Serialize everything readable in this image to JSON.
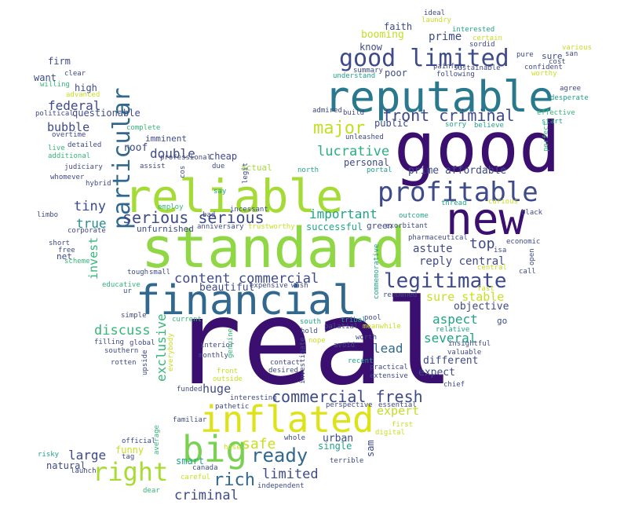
{
  "words": [
    {
      "text": "real",
      "color": "#3b0f6f"
    },
    {
      "text": "good",
      "color": "#3b0f6f"
    },
    {
      "text": "standard",
      "color": "#8fd744"
    },
    {
      "text": "reliable",
      "color": "#a5db36"
    },
    {
      "text": "financial",
      "color": "#31688e"
    },
    {
      "text": "reputable",
      "color": "#2a788e"
    },
    {
      "text": "new",
      "color": "#3b0f6f"
    },
    {
      "text": "inflated",
      "color": "#dde318"
    },
    {
      "text": "big",
      "color": "#7ad151"
    },
    {
      "text": "profitable",
      "color": "#3e4a89"
    },
    {
      "text": "particular",
      "color": "#31688e"
    },
    {
      "text": "good limited",
      "color": "#3e4a89"
    },
    {
      "text": "legitimate",
      "color": "#3e4a89"
    },
    {
      "text": "right",
      "color": "#a8db34"
    },
    {
      "text": "front criminal",
      "color": "#3e4a89"
    },
    {
      "text": "commercial fresh",
      "color": "#3e4a89"
    },
    {
      "text": "serious serious",
      "color": "#3e4a89"
    },
    {
      "text": "content commercial",
      "color": "#3e4a89"
    },
    {
      "text": "ready",
      "color": "#31688e"
    },
    {
      "text": "major",
      "color": "#c2df23"
    },
    {
      "text": "rich",
      "color": "#31688e"
    },
    {
      "text": "lucrative",
      "color": "#29af7f"
    },
    {
      "text": "prime affordable",
      "color": "#3e4a89"
    },
    {
      "text": "sure stable",
      "color": "#c8e020"
    },
    {
      "text": "important",
      "color": "#20a486"
    },
    {
      "text": "federal",
      "color": "#3e4a89"
    },
    {
      "text": "bubble",
      "color": "#3e4a89"
    },
    {
      "text": "double",
      "color": "#3e4a89"
    },
    {
      "text": "tiny",
      "color": "#3e4a89"
    },
    {
      "text": "true",
      "color": "#21918c"
    },
    {
      "text": "huge",
      "color": "#3e4a89"
    },
    {
      "text": "top",
      "color": "#3e4a89"
    },
    {
      "text": "astute",
      "color": "#3e4a89"
    },
    {
      "text": "reply central",
      "color": "#3e4a89"
    },
    {
      "text": "criminal",
      "color": "#3e4a89"
    },
    {
      "text": "limited",
      "color": "#3e4a89"
    },
    {
      "text": "large",
      "color": "#3e4a89"
    },
    {
      "text": "safe",
      "color": "#c8e020"
    },
    {
      "text": "exclusive",
      "color": "#35b779"
    },
    {
      "text": "invest",
      "color": "#35b779"
    },
    {
      "text": "discuss",
      "color": "#35b779"
    },
    {
      "text": "several",
      "color": "#20a486"
    },
    {
      "text": "aspect",
      "color": "#20a486"
    },
    {
      "text": "lead",
      "color": "#31688e"
    },
    {
      "text": "expert",
      "color": "#c2df23"
    },
    {
      "text": "prime",
      "color": "#3e4a89"
    },
    {
      "text": "booming",
      "color": "#c2df23"
    },
    {
      "text": "beautiful",
      "color": "#3e4a89"
    },
    {
      "text": "different",
      "color": "#3e4a89"
    },
    {
      "text": "expect",
      "color": "#3e4a89"
    },
    {
      "text": "objective",
      "color": "#3e4a89"
    },
    {
      "text": "successful",
      "color": "#20a486"
    },
    {
      "text": "personal",
      "color": "#3e4a89"
    },
    {
      "text": "public",
      "color": "#3e4a89"
    },
    {
      "text": "cheap",
      "color": "#3e4a89"
    },
    {
      "text": "roof",
      "color": "#3e4a89"
    },
    {
      "text": "funny",
      "color": "#c8e020"
    },
    {
      "text": "urban",
      "color": "#3e4a89"
    },
    {
      "text": "single",
      "color": "#20a486"
    },
    {
      "text": "natural",
      "color": "#3e4a89"
    },
    {
      "text": "smart",
      "color": "#20a486"
    },
    {
      "text": "sam",
      "color": "#3e4a89"
    },
    {
      "text": "faith",
      "color": "#3e4a89"
    },
    {
      "text": "know",
      "color": "#3e4a89"
    },
    {
      "text": "poor",
      "color": "#3e4a89"
    },
    {
      "text": "firm",
      "color": "#3e4a89"
    },
    {
      "text": "want",
      "color": "#3e4a89"
    },
    {
      "text": "high",
      "color": "#3e4a89"
    },
    {
      "text": "questionable",
      "color": "#3e4a89"
    },
    {
      "text": "imminent",
      "color": "#3e4a89"
    },
    {
      "text": "net",
      "color": "#3e4a89"
    },
    {
      "text": "green",
      "color": "#3e4a89"
    },
    {
      "text": "actual",
      "color": "#a5db36"
    },
    {
      "text": "go",
      "color": "#3e4a89"
    },
    {
      "text": "sure",
      "color": "#3e4a89"
    },
    {
      "text": "unfurnished",
      "color": "#3e4a89"
    },
    {
      "text": "ideal",
      "color": "#3e4a89"
    },
    {
      "text": "laundry",
      "color": "#c8e020"
    },
    {
      "text": "interested",
      "color": "#20a486"
    },
    {
      "text": "sordid",
      "color": "#3e4a89"
    },
    {
      "text": "certain",
      "color": "#c8e020"
    },
    {
      "text": "worthy",
      "color": "#c8e020"
    },
    {
      "text": "pure",
      "color": "#3e4a89"
    },
    {
      "text": "various",
      "color": "#c8e020"
    },
    {
      "text": "san",
      "color": "#3e4a89"
    },
    {
      "text": "cost",
      "color": "#3e4a89"
    },
    {
      "text": "confident",
      "color": "#3e4a89"
    },
    {
      "text": "painful",
      "color": "#3e4a89"
    },
    {
      "text": "sustainable",
      "color": "#3e4a89"
    },
    {
      "text": "following",
      "color": "#3e4a89"
    },
    {
      "text": "summary",
      "color": "#3e4a89"
    },
    {
      "text": "understand",
      "color": "#20a486"
    },
    {
      "text": "agree",
      "color": "#3e4a89"
    },
    {
      "text": "desperate",
      "color": "#20a486"
    },
    {
      "text": "clear",
      "color": "#3e4a89"
    },
    {
      "text": "willing",
      "color": "#35b779"
    },
    {
      "text": "advanced",
      "color": "#c8e020"
    },
    {
      "text": "political",
      "color": "#3e4a89"
    },
    {
      "text": "complete",
      "color": "#35b779"
    },
    {
      "text": "overtime",
      "color": "#3e4a89"
    },
    {
      "text": "live",
      "color": "#35b779"
    },
    {
      "text": "additional",
      "color": "#35b779"
    },
    {
      "text": "detailed",
      "color": "#3e4a89"
    },
    {
      "text": "professional",
      "color": "#3e4a89"
    },
    {
      "text": "judiciary",
      "color": "#3e4a89"
    },
    {
      "text": "assist",
      "color": "#3e4a89"
    },
    {
      "text": "whomever",
      "color": "#3e4a89"
    },
    {
      "text": "hybrid",
      "color": "#3e4a89"
    },
    {
      "text": "cos",
      "color": "#3e4a89"
    },
    {
      "text": "due",
      "color": "#3e4a89"
    },
    {
      "text": "employ",
      "color": "#35b779"
    },
    {
      "text": "say",
      "color": "#20a486"
    },
    {
      "text": "legit",
      "color": "#3e4a89"
    },
    {
      "text": "north",
      "color": "#20a486"
    },
    {
      "text": "incessant",
      "color": "#3e4a89"
    },
    {
      "text": "bad",
      "color": "#3e4a89"
    },
    {
      "text": "anniversary",
      "color": "#3e4a89"
    },
    {
      "text": "trustworthy",
      "color": "#c8e020"
    },
    {
      "text": "limbo",
      "color": "#3e4a89"
    },
    {
      "text": "corporate",
      "color": "#3e4a89"
    },
    {
      "text": "short",
      "color": "#3e4a89"
    },
    {
      "text": "free",
      "color": "#3e4a89"
    },
    {
      "text": "scheme",
      "color": "#35b779"
    },
    {
      "text": "tough",
      "color": "#3e4a89"
    },
    {
      "text": "small",
      "color": "#3e4a89"
    },
    {
      "text": "educative",
      "color": "#35b779"
    },
    {
      "text": "ur",
      "color": "#3e4a89"
    },
    {
      "text": "expensive",
      "color": "#3e4a89"
    },
    {
      "text": "wash",
      "color": "#3e4a89"
    },
    {
      "text": "simple",
      "color": "#3e4a89"
    },
    {
      "text": "current",
      "color": "#35b779"
    },
    {
      "text": "global",
      "color": "#3e4a89"
    },
    {
      "text": "filling",
      "color": "#3e4a89"
    },
    {
      "text": "southern",
      "color": "#3e4a89"
    },
    {
      "text": "rotten",
      "color": "#3e4a89"
    },
    {
      "text": "upside",
      "color": "#3e4a89"
    },
    {
      "text": "everybody",
      "color": "#c8e020"
    },
    {
      "text": "interior",
      "color": "#3e4a89"
    },
    {
      "text": "monthly",
      "color": "#3e4a89"
    },
    {
      "text": "genuine",
      "color": "#35b779"
    },
    {
      "text": "south",
      "color": "#20a486"
    },
    {
      "text": "hold",
      "color": "#3e4a89"
    },
    {
      "text": "nope",
      "color": "#c8e020"
    },
    {
      "text": "avoid",
      "color": "#3e4a89"
    },
    {
      "text": "tribal",
      "color": "#20a486"
    },
    {
      "text": "palatial",
      "color": "#3e4a89"
    },
    {
      "text": "pool",
      "color": "#3e4a89"
    },
    {
      "text": "meanwhile",
      "color": "#c8e020"
    },
    {
      "text": "worth",
      "color": "#3e4a89"
    },
    {
      "text": "recent",
      "color": "#20a486"
    },
    {
      "text": "practical",
      "color": "#3e4a89"
    },
    {
      "text": "extensive",
      "color": "#3e4a89"
    },
    {
      "text": "front",
      "color": "#c8e020"
    },
    {
      "text": "outside",
      "color": "#c8e020"
    },
    {
      "text": "funded",
      "color": "#3e4a89"
    },
    {
      "text": "contact",
      "color": "#3e4a89"
    },
    {
      "text": "desired",
      "color": "#3e4a89"
    },
    {
      "text": "investigate",
      "color": "#3e4a89"
    },
    {
      "text": "interesting",
      "color": "#3e4a89"
    },
    {
      "text": "pathetic",
      "color": "#3e4a89"
    },
    {
      "text": "perspective",
      "color": "#3e4a89"
    },
    {
      "text": "essential",
      "color": "#3e4a89"
    },
    {
      "text": "familiar",
      "color": "#3e4a89"
    },
    {
      "text": "first",
      "color": "#c8e020"
    },
    {
      "text": "digital",
      "color": "#c8e020"
    },
    {
      "text": "official",
      "color": "#3e4a89"
    },
    {
      "text": "tag",
      "color": "#3e4a89"
    },
    {
      "text": "average",
      "color": "#35b779"
    },
    {
      "text": "risky",
      "color": "#20a486"
    },
    {
      "text": "launch",
      "color": "#3e4a89"
    },
    {
      "text": "careful",
      "color": "#c8e020"
    },
    {
      "text": "canada",
      "color": "#3e4a89"
    },
    {
      "text": "hose",
      "color": "#c8e020"
    },
    {
      "text": "whole",
      "color": "#3e4a89"
    },
    {
      "text": "terrible",
      "color": "#3e4a89"
    },
    {
      "text": "dear",
      "color": "#35b779"
    },
    {
      "text": "independent",
      "color": "#3e4a89"
    },
    {
      "text": "insightful",
      "color": "#3e4a89"
    },
    {
      "text": "valuable",
      "color": "#3e4a89"
    },
    {
      "text": "chief",
      "color": "#3e4a89"
    },
    {
      "text": "renowned",
      "color": "#3e4a89"
    },
    {
      "text": "fast",
      "color": "#c8e020"
    },
    {
      "text": "commemorative",
      "color": "#20a486"
    },
    {
      "text": "relative",
      "color": "#20a486"
    },
    {
      "text": "central",
      "color": "#c8e020"
    },
    {
      "text": "pharmaceutical",
      "color": "#3e4a89"
    },
    {
      "text": "isa",
      "color": "#3e4a89"
    },
    {
      "text": "economic",
      "color": "#3e4a89"
    },
    {
      "text": "call",
      "color": "#3e4a89"
    },
    {
      "text": "open",
      "color": "#3e4a89"
    },
    {
      "text": "black",
      "color": "#3e4a89"
    },
    {
      "text": "outcome",
      "color": "#20a486"
    },
    {
      "text": "exorbitant",
      "color": "#3e4a89"
    },
    {
      "text": "thread",
      "color": "#20a486"
    },
    {
      "text": "curious",
      "color": "#c8e020"
    },
    {
      "text": "portal",
      "color": "#20a486"
    },
    {
      "text": "unleashed",
      "color": "#3e4a89"
    },
    {
      "text": "admired",
      "color": "#3e4a89"
    },
    {
      "text": "build",
      "color": "#3e4a89"
    },
    {
      "text": "sorry",
      "color": "#20a486"
    },
    {
      "text": "believe",
      "color": "#20a486"
    },
    {
      "text": "effective",
      "color": "#35b779"
    },
    {
      "text": "start",
      "color": "#20a486"
    },
    {
      "text": "perfect",
      "color": "#35b779"
    }
  ]
}
